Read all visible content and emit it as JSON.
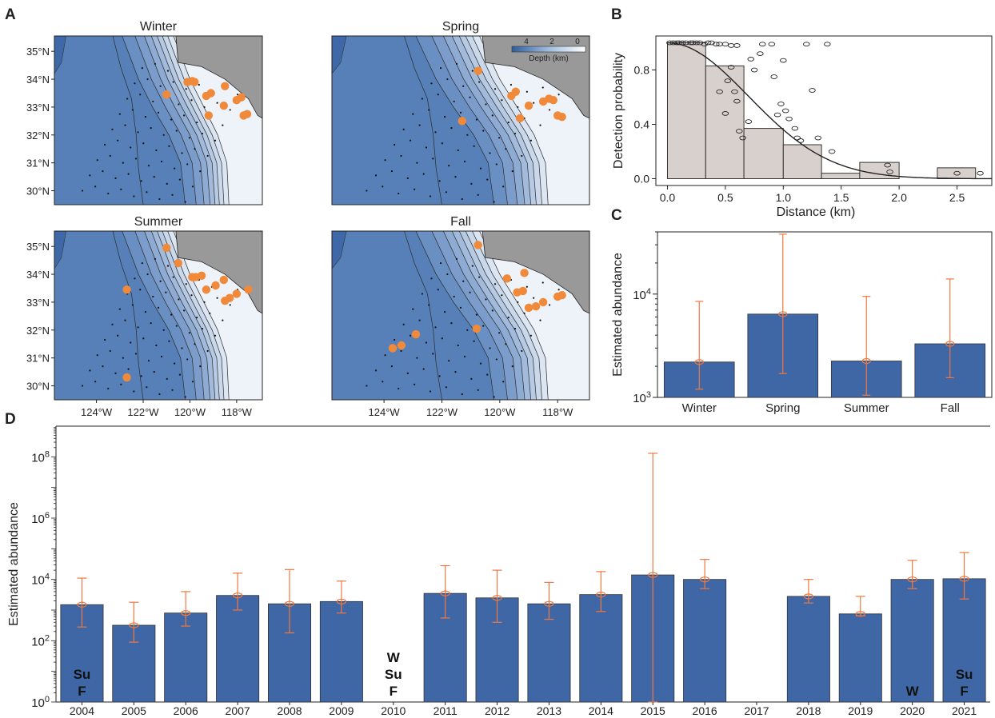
{
  "panel_letters": {
    "a": "A",
    "b": "B",
    "c": "C",
    "d": "D"
  },
  "colors": {
    "bar_blue": "#3f67a6",
    "error_orange": "#f07840",
    "sighting_orange": "#f08a3a",
    "land_gray": "#999999",
    "deep_ocean": "#5680b7",
    "histogram_fill": "#d8d0cc"
  },
  "maps": {
    "lat_ticks": [
      "35°N",
      "34°N",
      "33°N",
      "32°N",
      "31°N",
      "30°N"
    ],
    "lon_ticks": [
      "124°W",
      "122°W",
      "120°W",
      "118°W"
    ],
    "depth_legend": {
      "title": "Depth (km)",
      "ticks": [
        "4",
        "2",
        "0"
      ]
    },
    "panels": [
      {
        "title": "Winter",
        "sightings": [
          [
            -121.0,
            33.45
          ],
          [
            -120.1,
            33.9
          ],
          [
            -119.9,
            33.93
          ],
          [
            -119.8,
            33.9
          ],
          [
            -119.3,
            33.4
          ],
          [
            -119.1,
            33.5
          ],
          [
            -118.5,
            33.75
          ],
          [
            -118.55,
            33.05
          ],
          [
            -118.0,
            33.25
          ],
          [
            -117.8,
            33.35
          ],
          [
            -117.7,
            32.7
          ],
          [
            -117.55,
            32.75
          ],
          [
            -119.2,
            32.7
          ]
        ]
      },
      {
        "title": "Spring",
        "sightings": [
          [
            -120.75,
            34.3
          ],
          [
            -121.3,
            32.5
          ],
          [
            -119.6,
            33.4
          ],
          [
            -119.45,
            33.55
          ],
          [
            -119.0,
            33.05
          ],
          [
            -118.5,
            33.2
          ],
          [
            -118.3,
            33.3
          ],
          [
            -118.15,
            33.25
          ],
          [
            -118.0,
            32.7
          ],
          [
            -117.85,
            32.65
          ],
          [
            -119.3,
            32.6
          ]
        ]
      },
      {
        "title": "Summer",
        "sightings": [
          [
            -121.0,
            34.95
          ],
          [
            -120.5,
            34.4
          ],
          [
            -119.9,
            33.9
          ],
          [
            -119.75,
            33.9
          ],
          [
            -119.5,
            33.95
          ],
          [
            -119.3,
            33.45
          ],
          [
            -118.9,
            33.6
          ],
          [
            -118.55,
            33.8
          ],
          [
            -118.5,
            33.05
          ],
          [
            -118.3,
            33.15
          ],
          [
            -118.0,
            33.3
          ],
          [
            -117.5,
            33.45
          ],
          [
            -122.7,
            33.45
          ],
          [
            -122.7,
            30.3
          ]
        ]
      },
      {
        "title": "Fall",
        "sightings": [
          [
            -120.75,
            35.05
          ],
          [
            -119.15,
            34.05
          ],
          [
            -119.75,
            33.85
          ],
          [
            -119.4,
            33.35
          ],
          [
            -119.2,
            33.4
          ],
          [
            -119.0,
            32.8
          ],
          [
            -118.75,
            32.85
          ],
          [
            -118.5,
            33.0
          ],
          [
            -118.0,
            33.2
          ],
          [
            -117.85,
            33.25
          ],
          [
            -120.8,
            32.05
          ],
          [
            -122.9,
            31.85
          ],
          [
            -123.4,
            31.45
          ],
          [
            -123.7,
            31.35
          ]
        ]
      }
    ]
  },
  "chart_data": [
    {
      "type": "bar",
      "panel": "B",
      "xlabel": "Distance (km)",
      "ylabel": "Detection probability",
      "xlim": [
        -0.1,
        2.8
      ],
      "ylim": [
        -0.05,
        1.05
      ],
      "xticks": [
        "0.0",
        "0.5",
        "1.0",
        "1.5",
        "2.0",
        "2.5"
      ],
      "yticks": [
        "0.0",
        "0.4",
        "0.8"
      ],
      "bins": [
        [
          0.0,
          0.33,
          1.0
        ],
        [
          0.33,
          0.66,
          0.83
        ],
        [
          0.66,
          1.0,
          0.37
        ],
        [
          1.0,
          1.33,
          0.25
        ],
        [
          1.33,
          1.66,
          0.04
        ],
        [
          1.66,
          2.0,
          0.12
        ],
        [
          2.33,
          2.66,
          0.08
        ]
      ],
      "detection_curve": {
        "type": "half-normal",
        "sigma": 0.7
      },
      "points": [
        [
          0.02,
          1.0
        ],
        [
          0.05,
          1.0
        ],
        [
          0.08,
          1.0
        ],
        [
          0.1,
          1.0
        ],
        [
          0.13,
          1.0
        ],
        [
          0.16,
          1.0
        ],
        [
          0.2,
          1.0
        ],
        [
          0.22,
          1.0
        ],
        [
          0.25,
          1.0
        ],
        [
          0.28,
          1.0
        ],
        [
          0.32,
          0.99
        ],
        [
          0.35,
          1.0
        ],
        [
          0.38,
          1.0
        ],
        [
          0.42,
          0.99
        ],
        [
          0.45,
          0.99
        ],
        [
          0.5,
          0.99
        ],
        [
          0.55,
          0.98
        ],
        [
          0.6,
          0.98
        ],
        [
          0.45,
          0.64
        ],
        [
          0.52,
          0.72
        ],
        [
          0.55,
          0.82
        ],
        [
          0.5,
          0.48
        ],
        [
          0.58,
          0.64
        ],
        [
          0.6,
          0.57
        ],
        [
          0.62,
          0.35
        ],
        [
          0.65,
          0.3
        ],
        [
          0.7,
          0.42
        ],
        [
          0.72,
          0.88
        ],
        [
          0.75,
          0.8
        ],
        [
          0.8,
          0.92
        ],
        [
          0.82,
          0.99
        ],
        [
          0.9,
          0.99
        ],
        [
          0.92,
          0.75
        ],
        [
          0.95,
          0.47
        ],
        [
          0.98,
          0.55
        ],
        [
          1.0,
          0.87
        ],
        [
          1.02,
          0.5
        ],
        [
          1.05,
          0.44
        ],
        [
          1.1,
          0.37
        ],
        [
          1.12,
          0.3
        ],
        [
          1.15,
          0.28
        ],
        [
          1.2,
          0.99
        ],
        [
          1.25,
          0.65
        ],
        [
          1.3,
          0.3
        ],
        [
          1.38,
          0.99
        ],
        [
          1.42,
          0.2
        ],
        [
          1.9,
          0.1
        ],
        [
          1.92,
          0.05
        ],
        [
          2.5,
          0.04
        ],
        [
          2.7,
          0.04
        ]
      ]
    },
    {
      "type": "bar",
      "panel": "C",
      "ylabel": "Estimated abundance",
      "y_scale": "log",
      "ylim": [
        1000,
        40000
      ],
      "yticks": [
        {
          "value": 1000,
          "base": "10",
          "exp": "3"
        },
        {
          "value": 10000,
          "base": "10",
          "exp": "4"
        }
      ],
      "categories": [
        "Winter",
        "Spring",
        "Summer",
        "Fall"
      ],
      "values": [
        2200,
        6400,
        2250,
        3300
      ],
      "lower": [
        1200,
        1700,
        1050,
        1550
      ],
      "upper": [
        8500,
        38000,
        9500,
        14000
      ]
    },
    {
      "type": "bar",
      "panel": "D",
      "ylabel": "Estimated abundance",
      "y_scale": "log",
      "ylim": [
        1,
        1000000000
      ],
      "yticks": [
        {
          "value": 1,
          "base": "10",
          "exp": "0"
        },
        {
          "value": 100,
          "base": "10",
          "exp": "2"
        },
        {
          "value": 10000,
          "base": "10",
          "exp": "4"
        },
        {
          "value": 1000000,
          "base": "10",
          "exp": "6"
        },
        {
          "value": 100000000,
          "base": "10",
          "exp": "8"
        }
      ],
      "categories": [
        "2004",
        "2005",
        "2006",
        "2007",
        "2008",
        "2009",
        "2010",
        "2011",
        "2012",
        "2013",
        "2014",
        "2015",
        "2016",
        "2017",
        "2018",
        "2019",
        "2020",
        "2021"
      ],
      "values": [
        1500,
        320,
        800,
        3000,
        1600,
        1900,
        null,
        3500,
        2500,
        1600,
        3200,
        14000,
        10000,
        null,
        2800,
        750,
        10000,
        10500
      ],
      "lower": [
        280,
        90,
        300,
        1000,
        180,
        800,
        null,
        550,
        400,
        500,
        900,
        1,
        5000,
        null,
        1700,
        650,
        5000,
        2300
      ],
      "upper": [
        11000,
        1800,
        4000,
        16000,
        21000,
        8800,
        null,
        28000,
        20000,
        8000,
        18000,
        130000000,
        45000,
        null,
        10000,
        2800,
        42000,
        75000
      ],
      "missing_season_labels": [
        {
          "year": "2004",
          "lines": [
            "Su",
            "F"
          ]
        },
        {
          "year": "2010",
          "lines": [
            "W",
            "Su",
            "F"
          ]
        },
        {
          "year": "2020",
          "lines": [
            "W"
          ]
        },
        {
          "year": "2021",
          "lines": [
            "Su",
            "F"
          ]
        }
      ]
    }
  ]
}
